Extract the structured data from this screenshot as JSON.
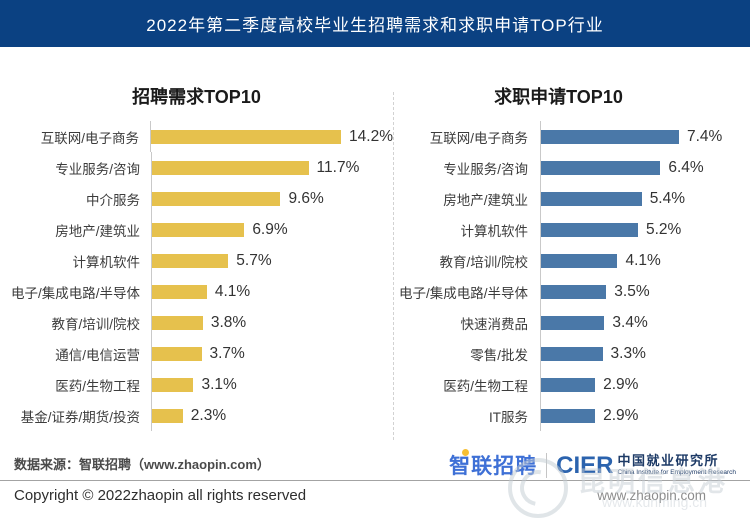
{
  "banner": {
    "title": "2022年第二季度高校毕业生招聘需求和求职申请TOP行业",
    "bg_color": "#0b4182",
    "text_color": "#ffffff"
  },
  "chart_data": [
    {
      "type": "bar",
      "orientation": "horizontal",
      "title": "招聘需求TOP10",
      "categories": [
        "互联网/电子商务",
        "专业服务/咨询",
        "中介服务",
        "房地产/建筑业",
        "计算机软件",
        "电子/集成电路/半导体",
        "教育/培训/院校",
        "通信/电信运营",
        "医药/生物工程",
        "基金/证券/期货/投资"
      ],
      "values": [
        14.2,
        11.7,
        9.6,
        6.9,
        5.7,
        4.1,
        3.8,
        3.7,
        3.1,
        2.3
      ],
      "value_suffix": "%",
      "bar_color": "#e6c14d",
      "xlim": [
        0,
        15
      ],
      "grid": false,
      "legend": false,
      "data_labels": [
        "14.2%",
        "11.7%",
        "9.6%",
        "6.9%",
        "5.7%",
        "4.1%",
        "3.8%",
        "3.7%",
        "3.1%",
        "2.3%"
      ]
    },
    {
      "type": "bar",
      "orientation": "horizontal",
      "title": "求职申请TOP10",
      "categories": [
        "互联网/电子商务",
        "专业服务/咨询",
        "房地产/建筑业",
        "计算机软件",
        "教育/培训/院校",
        "电子/集成电路/半导体",
        "快速消费品",
        "零售/批发",
        "医药/生物工程",
        "IT服务"
      ],
      "values": [
        7.4,
        6.4,
        5.4,
        5.2,
        4.1,
        3.5,
        3.4,
        3.3,
        2.9,
        2.9
      ],
      "value_suffix": "%",
      "bar_color": "#4a78a8",
      "xlim": [
        0,
        8
      ],
      "grid": false,
      "legend": false,
      "data_labels": [
        "7.4%",
        "6.4%",
        "5.4%",
        "5.2%",
        "4.1%",
        "3.5%",
        "3.4%",
        "3.3%",
        "2.9%",
        "2.9%"
      ]
    }
  ],
  "footer": {
    "source_text": "数据来源：智联招聘（www.zhaopin.com）",
    "copyright_text": "Copyright © 2022zhaopin all rights reserved",
    "zhaopin_logo_text": "智联招聘",
    "cier_acronym": "CIER",
    "cier_cn": "中国就业研究所",
    "cier_en": "China Institute for Employment Research",
    "site_url": "www.zhaopin.com"
  },
  "watermark": {
    "text": "昆明信息港",
    "url": "www.kunming.cn"
  }
}
